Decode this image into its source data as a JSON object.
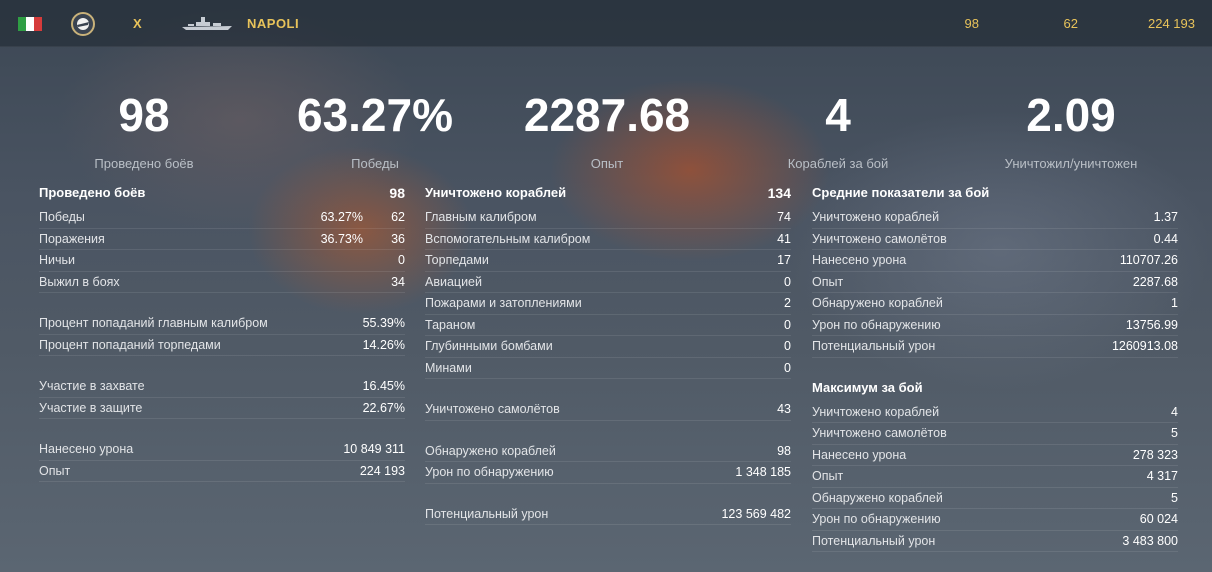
{
  "header": {
    "flag_colors": [
      "#2f9e44",
      "#ffffff",
      "#d63b3b"
    ],
    "tier": "X",
    "ship_name": "NAPOLI",
    "stats": [
      "98",
      "62",
      "224 193"
    ],
    "accent": "#e8c35a"
  },
  "summary": [
    {
      "value": "98",
      "label": "Проведено боёв"
    },
    {
      "value": "63.27%",
      "label": "Победы"
    },
    {
      "value": "2287.68",
      "label": "Опыт"
    },
    {
      "value": "4",
      "label": "Кораблей за бой"
    },
    {
      "value": "2.09",
      "label": "Уничтожил/уничтожен"
    }
  ],
  "col1": {
    "title": "Проведено боёв",
    "title_value": "98",
    "wins": {
      "label": "Победы",
      "pct": "63.27%",
      "value": "62"
    },
    "losses": {
      "label": "Поражения",
      "pct": "36.73%",
      "value": "36"
    },
    "draws": {
      "label": "Ничьи",
      "value": "0"
    },
    "survived": {
      "label": "Выжил в боях",
      "value": "34"
    },
    "main_hit": {
      "label": "Процент попаданий главным калибром",
      "value": "55.39%"
    },
    "torp_hit": {
      "label": "Процент попаданий торпедами",
      "value": "14.26%"
    },
    "capture": {
      "label": "Участие в захвате",
      "value": "16.45%"
    },
    "defense": {
      "label": "Участие в защите",
      "value": "22.67%"
    },
    "damage": {
      "label": "Нанесено урона",
      "value": "10 849 311"
    },
    "xp": {
      "label": "Опыт",
      "value": "224 193"
    }
  },
  "col2": {
    "title": "Уничтожено кораблей",
    "title_value": "134",
    "rows": [
      {
        "label": "Главным калибром",
        "value": "74"
      },
      {
        "label": "Вспомогательным калибром",
        "value": "41"
      },
      {
        "label": "Торпедами",
        "value": "17"
      },
      {
        "label": "Авиацией",
        "value": "0"
      },
      {
        "label": "Пожарами и затоплениями",
        "value": "2"
      },
      {
        "label": "Тараном",
        "value": "0"
      },
      {
        "label": "Глубинными бомбами",
        "value": "0"
      },
      {
        "label": "Минами",
        "value": "0"
      }
    ],
    "planes": {
      "label": "Уничтожено самолётов",
      "value": "43"
    },
    "spotted": {
      "label": "Обнаружено кораблей",
      "value": "98"
    },
    "spot_dmg": {
      "label": "Урон по обнаружению",
      "value": "1 348 185"
    },
    "potential": {
      "label": "Потенциальный урон",
      "value": "123 569 482"
    }
  },
  "col3": {
    "avg_title": "Средние показатели за бой",
    "avg": [
      {
        "label": "Уничтожено кораблей",
        "value": "1.37"
      },
      {
        "label": "Уничтожено самолётов",
        "value": "0.44"
      },
      {
        "label": "Нанесено урона",
        "value": "110707.26"
      },
      {
        "label": "Опыт",
        "value": "2287.68"
      },
      {
        "label": "Обнаружено кораблей",
        "value": "1"
      },
      {
        "label": "Урон по обнаружению",
        "value": "13756.99"
      },
      {
        "label": "Потенциальный урон",
        "value": "1260913.08"
      }
    ],
    "max_title": "Максимум за бой",
    "max": [
      {
        "label": "Уничтожено кораблей",
        "value": "4"
      },
      {
        "label": "Уничтожено самолётов",
        "value": "5"
      },
      {
        "label": "Нанесено урона",
        "value": "278 323"
      },
      {
        "label": "Опыт",
        "value": "4 317"
      },
      {
        "label": "Обнаружено кораблей",
        "value": "5"
      },
      {
        "label": "Урон по обнаружению",
        "value": "60 024"
      },
      {
        "label": "Потенциальный урон",
        "value": "3 483 800"
      }
    ]
  }
}
